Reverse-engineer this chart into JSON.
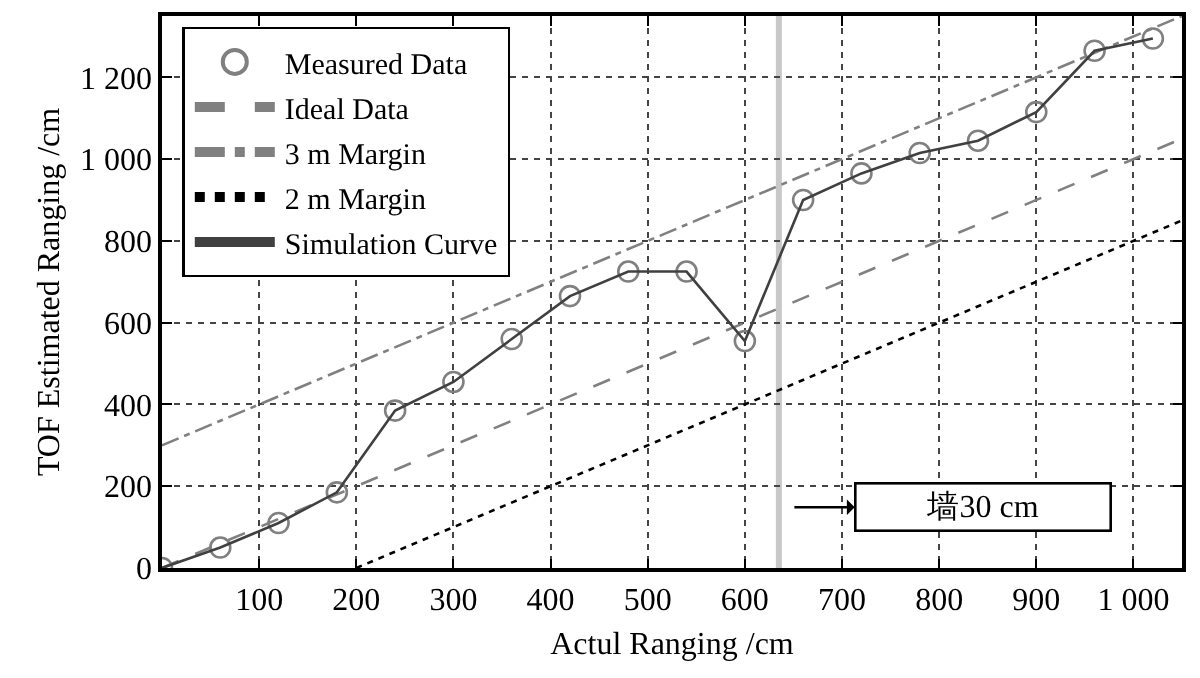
{
  "chart_data": {
    "type": "line",
    "xlabel": "Actul Ranging /cm",
    "ylabel": "TOF Estimated Ranging /cm",
    "xlim": [
      0,
      1050
    ],
    "ylim": [
      0,
      1350
    ],
    "xticks": [
      100,
      200,
      300,
      400,
      500,
      600,
      700,
      800,
      900,
      {
        "value": 1000,
        "label": "1 000"
      }
    ],
    "yticks": [
      0,
      200,
      400,
      600,
      800,
      {
        "value": 1000,
        "label": "1 000"
      },
      {
        "value": 1200,
        "label": "1 200"
      }
    ],
    "grid": true,
    "legend": "top left",
    "series": [
      {
        "name": "Measured Data",
        "type": "scatter",
        "marker": "circle",
        "color": "#808080",
        "x": [
          0,
          60,
          120,
          180,
          240,
          300,
          360,
          420,
          480,
          540,
          600,
          660,
          720,
          780,
          840,
          900,
          960,
          1020
        ],
        "values": [
          0,
          50,
          110,
          185,
          385,
          455,
          560,
          665,
          725,
          725,
          555,
          900,
          965,
          1015,
          1045,
          1115,
          1265,
          1295
        ]
      },
      {
        "name": "Ideal Data",
        "type": "line",
        "line_style": "dashed",
        "color": "#808080",
        "x": [
          0,
          1050
        ],
        "values": [
          0,
          1050
        ]
      },
      {
        "name": "3 m Margin",
        "type": "line",
        "line_style": "dashdot",
        "color": "#808080",
        "x": [
          0,
          1050
        ],
        "values": [
          300,
          1350
        ]
      },
      {
        "name": "2 m Margin",
        "type": "line",
        "line_style": "dotted",
        "color": "#000000",
        "x": [
          200,
          1050
        ],
        "values": [
          0,
          850
        ]
      },
      {
        "name": "Simulation Curve",
        "type": "line",
        "line_style": "solid",
        "color": "#404040",
        "x": [
          0,
          60,
          120,
          180,
          240,
          300,
          360,
          420,
          480,
          540,
          600,
          660,
          720,
          780,
          840,
          900,
          960,
          1020
        ],
        "values": [
          0,
          50,
          110,
          185,
          385,
          455,
          560,
          665,
          725,
          725,
          555,
          900,
          965,
          1015,
          1045,
          1115,
          1265,
          1295
        ]
      }
    ],
    "ref_lines": [
      {
        "axis": "x",
        "value": 635,
        "color": "#c8c8c8",
        "line_style": "solid"
      }
    ],
    "annotations": [
      "墙30 cm"
    ]
  }
}
